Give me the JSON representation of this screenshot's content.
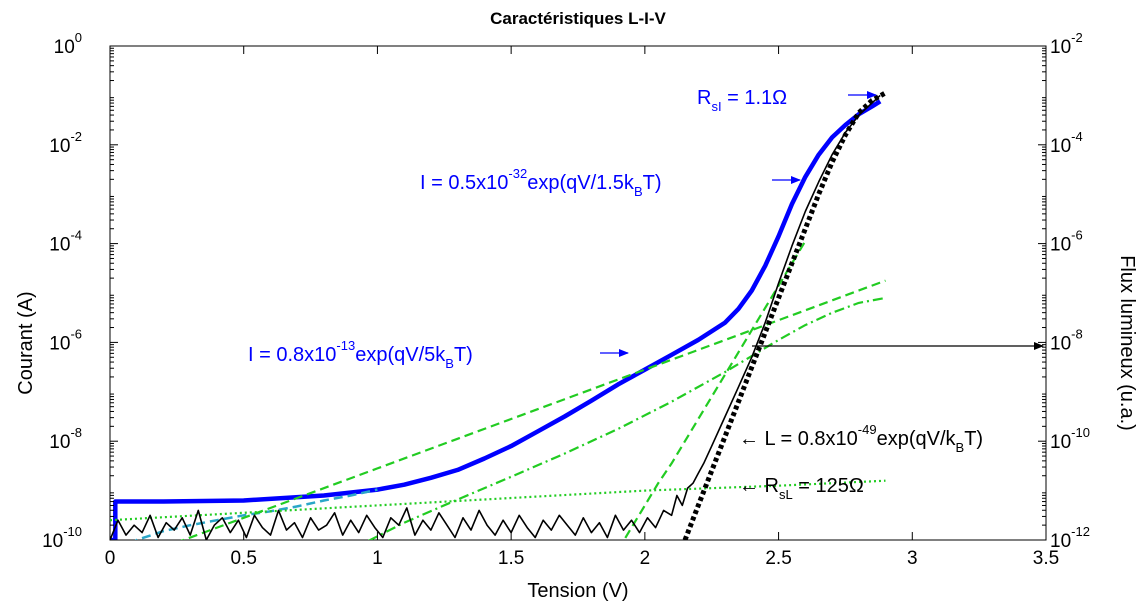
{
  "chart_data": {
    "type": "line",
    "title": "Caractéristiques L-I-V",
    "xlabel": "Tension (V)",
    "ylabel_left": "Courant (A)",
    "ylabel_right": "Flux lumineux (u.a.)",
    "xlim": [
      0,
      3.5
    ],
    "ylim_left_log10": [
      -10,
      0
    ],
    "ylim_right_log10": [
      -12,
      -2
    ],
    "y_scale": "log",
    "grid": false,
    "legend": "none",
    "x_ticks": [
      "0",
      "0.5",
      "1",
      "1.5",
      "2",
      "2.5",
      "3",
      "3.5"
    ],
    "y_ticks_left": [
      {
        "base": "10",
        "exp": "0"
      },
      {
        "base": "10",
        "exp": "-2"
      },
      {
        "base": "10",
        "exp": "-4"
      },
      {
        "base": "10",
        "exp": "-6"
      },
      {
        "base": "10",
        "exp": "-8"
      },
      {
        "base": "10",
        "exp": "-10"
      }
    ],
    "y_ticks_right": [
      {
        "base": "10",
        "exp": "-2"
      },
      {
        "base": "10",
        "exp": "-4"
      },
      {
        "base": "10",
        "exp": "-6"
      },
      {
        "base": "10",
        "exp": "-8"
      },
      {
        "base": "10",
        "exp": "-10"
      },
      {
        "base": "10",
        "exp": "-12"
      }
    ],
    "series": [
      {
        "color": "#0000ff",
        "style": "solid",
        "width": 4.5,
        "axis": "left",
        "x": [
          0.0,
          0.02,
          0.02,
          0.2,
          0.5,
          0.8,
          1.0,
          1.1,
          1.2,
          1.3,
          1.4,
          1.5,
          1.6,
          1.7,
          1.8,
          1.9,
          2.0,
          2.1,
          2.2,
          2.3,
          2.35,
          2.4,
          2.45,
          2.5,
          2.55,
          2.6,
          2.65,
          2.7,
          2.75,
          2.8,
          2.85,
          2.88
        ],
        "y": [
          -10.0,
          -10.0,
          -9.22,
          -9.22,
          -9.2,
          -9.1,
          -8.98,
          -8.88,
          -8.74,
          -8.58,
          -8.35,
          -8.1,
          -7.8,
          -7.5,
          -7.18,
          -6.85,
          -6.55,
          -6.25,
          -5.95,
          -5.6,
          -5.32,
          -4.95,
          -4.45,
          -3.85,
          -3.2,
          -2.65,
          -2.2,
          -1.85,
          -1.6,
          -1.38,
          -1.22,
          -1.12
        ]
      },
      {
        "color": "#2aa6c8",
        "style": "dashed",
        "width": 2.5,
        "axis": "left",
        "x": [
          0.0,
          0.1,
          0.2,
          0.3,
          0.4,
          0.5,
          0.6,
          0.7,
          0.8,
          0.9,
          1.0
        ],
        "y": [
          -10.5,
          -10.0,
          -9.82,
          -9.7,
          -9.6,
          -9.5,
          -9.42,
          -9.32,
          -9.2,
          -9.1,
          -8.98
        ]
      },
      {
        "color": "#22cc22",
        "style": "dashed",
        "width": 2.2,
        "axis": "left",
        "x": [
          0.0,
          0.5,
          1.0,
          1.5,
          2.0,
          2.5,
          2.9
        ],
        "y": [
          -10.55,
          -9.55,
          -8.55,
          -7.55,
          -6.55,
          -5.55,
          -4.75
        ]
      },
      {
        "color": "#22cc22",
        "style": "dashed",
        "width": 2.2,
        "axis": "left",
        "x": [
          1.9,
          1.95,
          2.0,
          2.05,
          2.1,
          2.2,
          2.3,
          2.4,
          2.5,
          2.55,
          2.6
        ],
        "y": [
          -10.2,
          -9.75,
          -9.3,
          -8.85,
          -8.45,
          -7.55,
          -6.65,
          -5.75,
          -4.85,
          -4.4,
          -3.95
        ]
      },
      {
        "color": "#22cc22",
        "style": "dashdot",
        "width": 2.2,
        "axis": "left",
        "x": [
          0.9,
          1.1,
          1.3,
          1.5,
          1.7,
          1.9,
          2.1,
          2.3,
          2.5,
          2.6,
          2.7,
          2.8,
          2.9
        ],
        "y": [
          -10.2,
          -9.65,
          -9.18,
          -8.72,
          -8.25,
          -7.75,
          -7.2,
          -6.6,
          -5.95,
          -5.65,
          -5.4,
          -5.2,
          -5.1
        ]
      },
      {
        "color": "#22cc22",
        "style": "dotted",
        "width": 2.2,
        "axis": "left",
        "x": [
          0.0,
          0.5,
          1.0,
          1.5,
          2.0,
          2.5,
          2.9
        ],
        "y": [
          -9.6,
          -9.45,
          -9.3,
          -9.15,
          -9.0,
          -8.9,
          -8.8
        ]
      },
      {
        "color": "#000000",
        "style": "solid",
        "width": 1.6,
        "axis": "right",
        "x": [
          0.0,
          0.03,
          0.06,
          0.09,
          0.12,
          0.15,
          0.18,
          0.21,
          0.24,
          0.27,
          0.3,
          0.33,
          0.36,
          0.39,
          0.42,
          0.45,
          0.48,
          0.51,
          0.54,
          0.57,
          0.6,
          0.63,
          0.66,
          0.69,
          0.72,
          0.75,
          0.78,
          0.81,
          0.84,
          0.87,
          0.9,
          0.93,
          0.96,
          0.99,
          1.02,
          1.05,
          1.08,
          1.11,
          1.14,
          1.17,
          1.2,
          1.23,
          1.26,
          1.29,
          1.32,
          1.35,
          1.38,
          1.41,
          1.44,
          1.47,
          1.5,
          1.53,
          1.56,
          1.59,
          1.62,
          1.65,
          1.68,
          1.71,
          1.74,
          1.77,
          1.8,
          1.83,
          1.86,
          1.89,
          1.92,
          1.95,
          1.98,
          2.01,
          2.04,
          2.07,
          2.1,
          2.12,
          2.14,
          2.16,
          2.18,
          2.2,
          2.22,
          2.25,
          2.3,
          2.35,
          2.4,
          2.45,
          2.5,
          2.55,
          2.6,
          2.65,
          2.7,
          2.75,
          2.8,
          2.85,
          2.88
        ],
        "y": [
          -12.0,
          -11.6,
          -11.9,
          -11.7,
          -11.85,
          -11.5,
          -11.95,
          -11.65,
          -11.8,
          -11.55,
          -11.9,
          -11.4,
          -12.0,
          -11.7,
          -11.55,
          -11.85,
          -11.6,
          -11.95,
          -11.5,
          -11.75,
          -11.9,
          -11.4,
          -11.8,
          -11.65,
          -11.95,
          -11.55,
          -11.8,
          -11.7,
          -11.45,
          -11.9,
          -11.6,
          -11.85,
          -11.5,
          -11.75,
          -11.95,
          -11.55,
          -11.7,
          -11.35,
          -11.9,
          -11.6,
          -11.8,
          -11.45,
          -11.7,
          -11.95,
          -11.55,
          -11.8,
          -11.4,
          -11.7,
          -11.9,
          -11.6,
          -11.85,
          -11.5,
          -11.75,
          -11.95,
          -11.6,
          -11.8,
          -11.5,
          -11.7,
          -11.9,
          -11.55,
          -11.85,
          -11.65,
          -11.95,
          -11.5,
          -11.8,
          -11.6,
          -11.85,
          -11.55,
          -11.75,
          -11.4,
          -11.5,
          -11.1,
          -11.3,
          -10.95,
          -10.85,
          -10.65,
          -10.45,
          -10.1,
          -9.5,
          -8.9,
          -8.3,
          -7.6,
          -6.8,
          -6.05,
          -5.35,
          -4.75,
          -4.2,
          -3.75,
          -3.4,
          -3.15,
          -3.0
        ]
      },
      {
        "color": "#000000",
        "style": "dotted-heavy",
        "width": 5,
        "axis": "right",
        "x": [
          2.15,
          2.2,
          2.25,
          2.3,
          2.35,
          2.4,
          2.45,
          2.5,
          2.55,
          2.6,
          2.65,
          2.7,
          2.75,
          2.8,
          2.85,
          2.9
        ],
        "y": [
          -12.0,
          -11.3,
          -10.6,
          -9.9,
          -9.2,
          -8.5,
          -7.8,
          -7.1,
          -6.4,
          -5.7,
          -5.0,
          -4.35,
          -3.8,
          -3.35,
          -3.1,
          -2.95
        ]
      }
    ],
    "annotations": [
      {
        "parts": [
          {
            "t": "R",
            "s": ""
          },
          {
            "t": "sI",
            "s": "sub"
          },
          {
            "t": " = 1.1Ω",
            "s": ""
          }
        ],
        "color": "#0000ff"
      },
      {
        "parts": [
          {
            "t": "I = 0.5x10",
            "s": ""
          },
          {
            "t": "-32",
            "s": "sup"
          },
          {
            "t": "exp(qV/1.5k",
            "s": ""
          },
          {
            "t": "B",
            "s": "sub"
          },
          {
            "t": "T)",
            "s": ""
          }
        ],
        "color": "#0000ff"
      },
      {
        "parts": [
          {
            "t": "I = 0.8x10",
            "s": ""
          },
          {
            "t": "-13",
            "s": "sup"
          },
          {
            "t": "exp(qV/5k",
            "s": ""
          },
          {
            "t": "B",
            "s": "sub"
          },
          {
            "t": "T)",
            "s": ""
          }
        ],
        "color": "#0000ff"
      },
      {
        "parts": [
          {
            "t": "← L = 0.8x10",
            "s": ""
          },
          {
            "t": "-49",
            "s": "sup"
          },
          {
            "t": "exp(qV/k",
            "s": ""
          },
          {
            "t": "B",
            "s": "sub"
          },
          {
            "t": "T)",
            "s": ""
          }
        ],
        "color": "#000000"
      },
      {
        "parts": [
          {
            "t": "← R",
            "s": ""
          },
          {
            "t": "sL",
            "s": "sub"
          },
          {
            "t": " = 125Ω",
            "s": ""
          }
        ],
        "color": "#000000"
      }
    ]
  }
}
